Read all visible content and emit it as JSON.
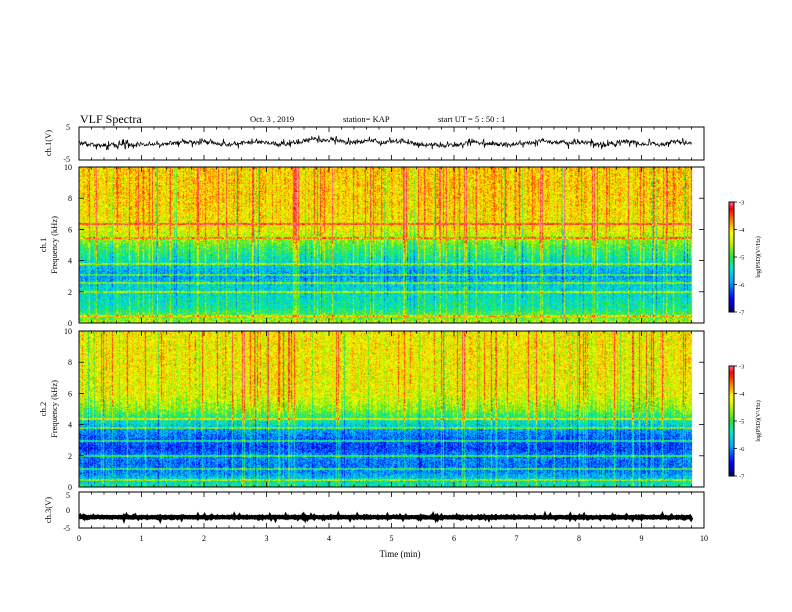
{
  "header": {
    "title": "VLF Spectra",
    "date": "Oct. 3  , 2019",
    "station": "station= KAP",
    "start": "start  UT  =   5  : 50 : 1"
  },
  "colors": {
    "colormap": [
      "#000080",
      "#0000ff",
      "#00c8ff",
      "#00ff80",
      "#c8ff00",
      "#ffff00",
      "#ff8000",
      "#ff0000",
      "#ff6080",
      "#ffffff"
    ],
    "waveform": "#000000"
  },
  "chart_data": [
    {
      "panel": "ch1-waveform",
      "type": "line",
      "ylabel": "ch.1(V)",
      "ylim": [
        -5,
        5
      ],
      "yticks": [
        "5",
        "-5"
      ],
      "xlim": [
        0,
        10
      ],
      "description_level": "noisy waveform centred near 0 V, amplitude about ±1.5 V",
      "series": [
        {
          "values_summary": {
            "x_start": 0,
            "x_end": 9.8,
            "mean": 0.0,
            "amplitude": 1.5
          }
        }
      ]
    },
    {
      "panel": "ch1-spectrogram",
      "type": "heatmap",
      "ylabel_line1": "ch.1",
      "ylabel_line2": "Frequency  (kHz)",
      "yticks": [
        "0",
        "2",
        "4",
        "6",
        "8",
        "10"
      ],
      "ylim": [
        0,
        10
      ],
      "xlim": [
        0,
        10
      ],
      "data_end_x": 9.8,
      "colorbar": {
        "label": "log(PSD)(V²/Hz)",
        "ticks": [
          "-3",
          "-4",
          "-5",
          "-6",
          "-7"
        ],
        "range": [
          -7,
          -3
        ]
      },
      "bands_khz": [
        0.5,
        2.0,
        2.6,
        3.1,
        3.8,
        5.5,
        6.4
      ],
      "mean_profile": [
        [
          0.0,
          -4.5
        ],
        [
          1.0,
          -5.3
        ],
        [
          2.0,
          -5.5
        ],
        [
          2.5,
          -5.6
        ],
        [
          3.0,
          -5.9
        ],
        [
          3.5,
          -5.7
        ],
        [
          4.0,
          -5.4
        ],
        [
          5.0,
          -4.9
        ],
        [
          6.0,
          -4.2
        ],
        [
          8.0,
          -4.0
        ],
        [
          10.0,
          -4.0
        ]
      ]
    },
    {
      "panel": "ch2-spectrogram",
      "type": "heatmap",
      "ylabel_line1": "ch.2",
      "ylabel_line2": "Frequency  (kHz)",
      "yticks": [
        "0",
        "2",
        "4",
        "6",
        "8",
        "10"
      ],
      "ylim": [
        0,
        10
      ],
      "xlim": [
        0,
        10
      ],
      "data_end_x": 9.8,
      "colorbar": {
        "label": "log(PSD)(V²/Hz)",
        "ticks": [
          "-3",
          "-4",
          "-5",
          "-6",
          "-7"
        ],
        "range": [
          -7,
          -3
        ]
      },
      "bands_khz": [
        0.5,
        1.2,
        2.0,
        3.0,
        3.8,
        4.4
      ],
      "mean_profile": [
        [
          0.0,
          -5.2
        ],
        [
          1.0,
          -6.0
        ],
        [
          1.5,
          -6.1
        ],
        [
          2.0,
          -6.0
        ],
        [
          2.5,
          -6.3
        ],
        [
          3.0,
          -6.2
        ],
        [
          3.5,
          -6.0
        ],
        [
          4.0,
          -5.6
        ],
        [
          4.5,
          -5.2
        ],
        [
          5.0,
          -4.7
        ],
        [
          6.0,
          -4.3
        ],
        [
          8.0,
          -4.2
        ],
        [
          10.0,
          -4.2
        ]
      ]
    },
    {
      "panel": "ch3-waveform",
      "type": "line",
      "ylabel": "ch.3(V)",
      "ylim": [
        -5,
        5
      ],
      "yticks": [
        "5",
        "0",
        "-5"
      ],
      "xlim": [
        0,
        10
      ],
      "xlabel": "Time  (min)",
      "xticks": [
        "0",
        "1",
        "2",
        "3",
        "4",
        "5",
        "6",
        "7",
        "8",
        "9",
        "10"
      ],
      "series": [
        {
          "values_summary": {
            "x_start": 0,
            "x_end": 9.8,
            "mean": -2.0,
            "amplitude": 0.3
          }
        }
      ]
    }
  ]
}
